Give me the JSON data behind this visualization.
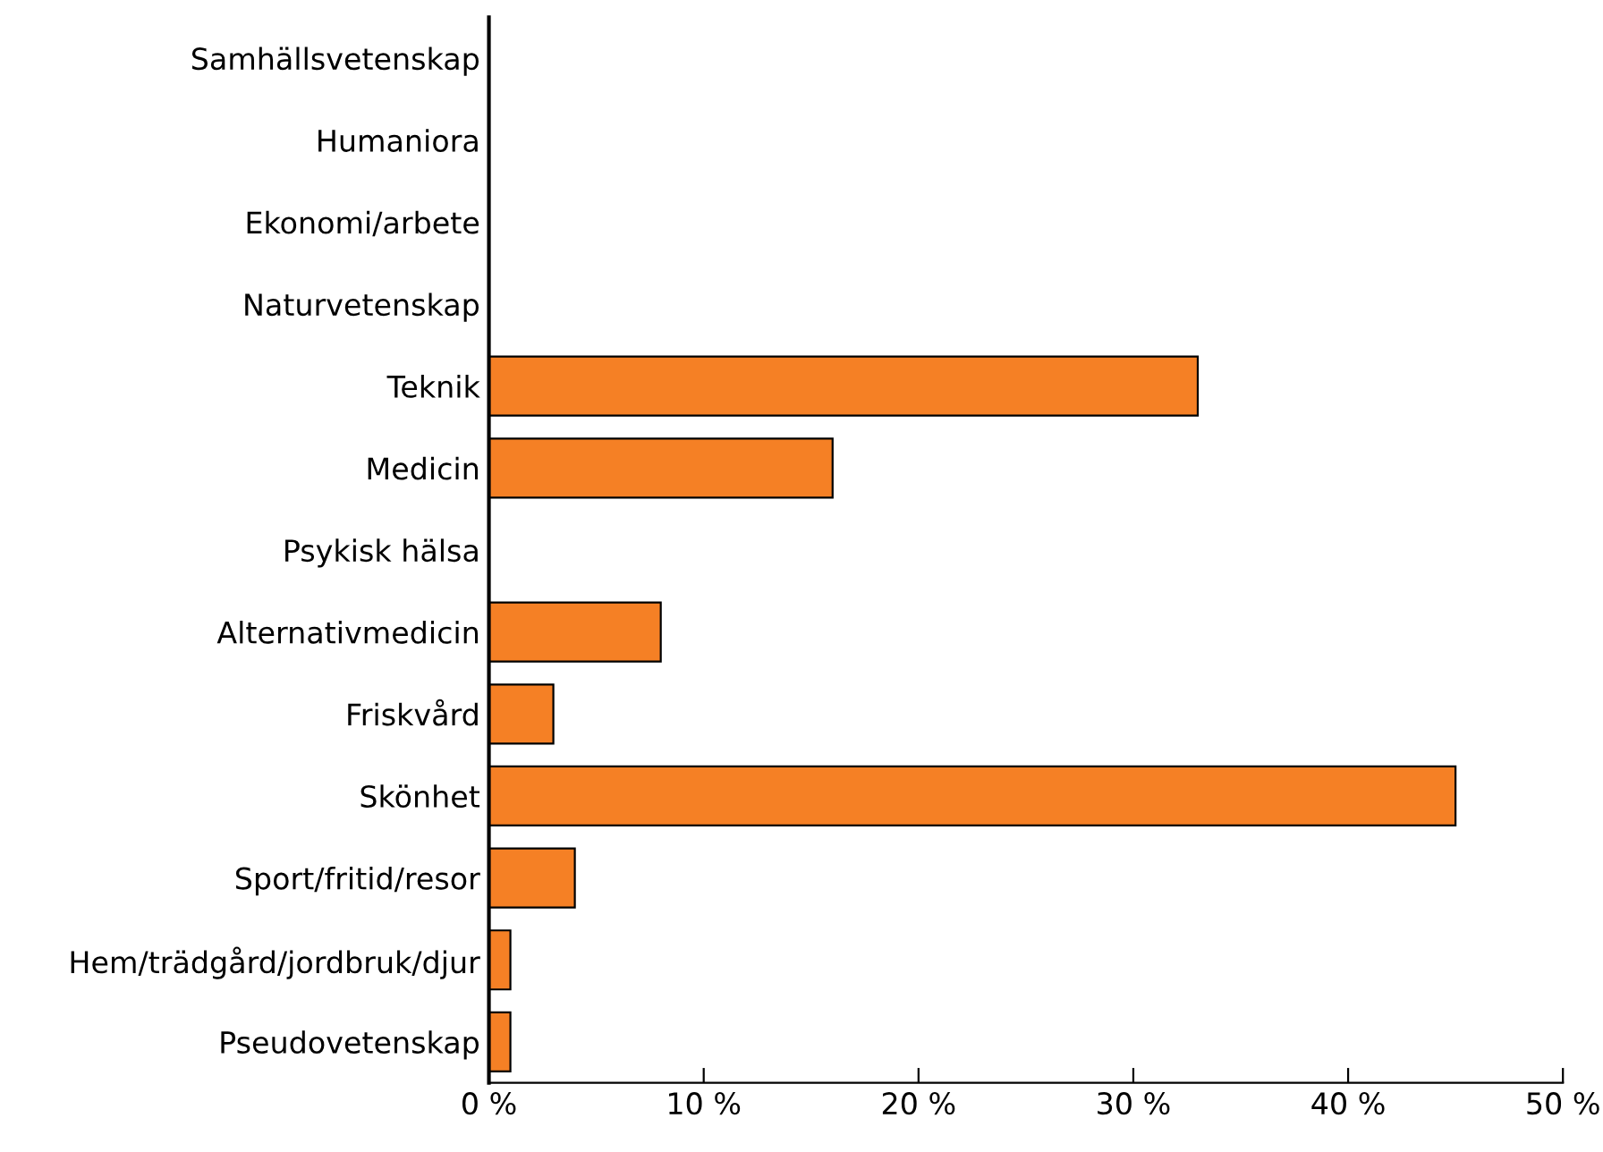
{
  "chart_data": {
    "type": "bar",
    "orientation": "horizontal",
    "categories": [
      "Samhällsvetenskap",
      "Humaniora",
      "Ekonomi/arbete",
      "Naturvetenskap",
      "Teknik",
      "Medicin",
      "Psykisk hälsa",
      "Alternativmedicin",
      "Friskvård",
      "Skönhet",
      "Sport/fritid/resor",
      "Hem/trädgård/jordbruk/djur",
      "Pseudovetenskap"
    ],
    "values": [
      0,
      0,
      0,
      0,
      33,
      16,
      0,
      8,
      3,
      45,
      4,
      1,
      1
    ],
    "color": "#f58025",
    "xlim": [
      0,
      50
    ],
    "xticks": [
      {
        "value": 0,
        "label": "0 %"
      },
      {
        "value": 10,
        "label": "10 %"
      },
      {
        "value": 20,
        "label": "20 %"
      },
      {
        "value": 30,
        "label": "30 %"
      },
      {
        "value": 40,
        "label": "40 %"
      },
      {
        "value": 50,
        "label": "50 %"
      }
    ],
    "grid": false,
    "legend": false
  }
}
